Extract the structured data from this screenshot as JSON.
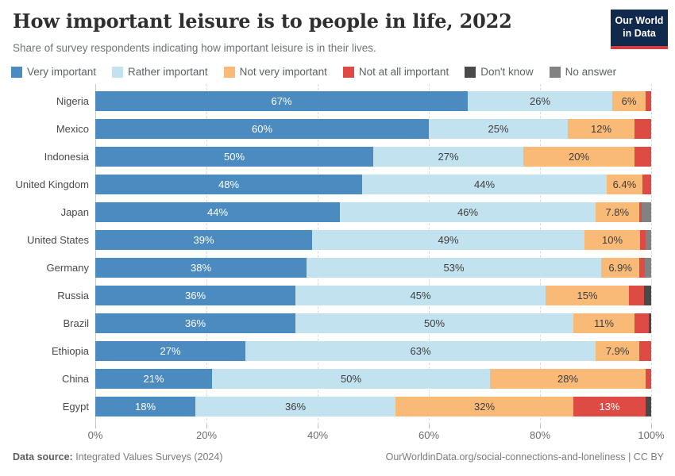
{
  "header": {
    "title": "How important leisure is to people in life, 2022",
    "subtitle": "Share of survey respondents indicating how important leisure is in their lives.",
    "logo": {
      "line1": "Our World",
      "line2": "in Data",
      "bg_color": "#12294E",
      "accent_color": "#D23D42"
    }
  },
  "chart_data": {
    "type": "bar",
    "stacked": true,
    "orientation": "horizontal",
    "unit": "%",
    "xlim": [
      0,
      100
    ],
    "x_ticks": [
      "0%",
      "20%",
      "40%",
      "60%",
      "80%",
      "100%"
    ],
    "grid": "dashed-vertical",
    "legend_position": "top",
    "series_names": [
      "Very important",
      "Rather important",
      "Not very important",
      "Not at all important",
      "Don't know",
      "No answer"
    ],
    "series_colors": [
      "#4C8BC0",
      "#C2E2EF",
      "#F9BA77",
      "#DD4B44",
      "#494949",
      "#828282"
    ],
    "label_text_colors": [
      "#ffffff",
      "#3d3d3d",
      "#3d3d3d",
      "#ffffff",
      "#ffffff",
      "#ffffff"
    ],
    "rows": [
      {
        "country": "Nigeria",
        "values": [
          67,
          26,
          6,
          1,
          0,
          0
        ],
        "labels": [
          "67%",
          "26%",
          "6%",
          "",
          "",
          ""
        ]
      },
      {
        "country": "Mexico",
        "values": [
          60,
          25,
          12,
          3,
          0,
          0
        ],
        "labels": [
          "60%",
          "25%",
          "12%",
          "",
          "",
          ""
        ]
      },
      {
        "country": "Indonesia",
        "values": [
          50,
          27,
          20,
          3,
          0,
          0
        ],
        "labels": [
          "50%",
          "27%",
          "20%",
          "",
          "",
          ""
        ]
      },
      {
        "country": "United Kingdom",
        "values": [
          48,
          44,
          6.4,
          1.6,
          0,
          0
        ],
        "labels": [
          "48%",
          "44%",
          "6.4%",
          "",
          "",
          ""
        ]
      },
      {
        "country": "Japan",
        "values": [
          44,
          46,
          7.8,
          0.5,
          0,
          1.7
        ],
        "labels": [
          "44%",
          "46%",
          "7.8%",
          "",
          "",
          ""
        ]
      },
      {
        "country": "United States",
        "values": [
          39,
          49,
          10,
          1,
          0,
          1
        ],
        "labels": [
          "39%",
          "49%",
          "10%",
          "",
          "",
          ""
        ]
      },
      {
        "country": "Germany",
        "values": [
          38,
          53,
          6.9,
          0.9,
          0,
          1.2
        ],
        "labels": [
          "38%",
          "53%",
          "6.9%",
          "",
          "",
          ""
        ]
      },
      {
        "country": "Russia",
        "values": [
          36,
          45,
          15,
          2.7,
          1.3,
          0
        ],
        "labels": [
          "36%",
          "45%",
          "15%",
          "",
          "",
          ""
        ]
      },
      {
        "country": "Brazil",
        "values": [
          36,
          50,
          11,
          2.5,
          0.5,
          0
        ],
        "labels": [
          "36%",
          "50%",
          "11%",
          "",
          "",
          ""
        ]
      },
      {
        "country": "Ethiopia",
        "values": [
          27,
          63,
          7.9,
          2.1,
          0,
          0
        ],
        "labels": [
          "27%",
          "63%",
          "7.9%",
          "",
          "",
          ""
        ]
      },
      {
        "country": "China",
        "values": [
          21,
          50,
          28,
          1,
          0,
          0
        ],
        "labels": [
          "21%",
          "50%",
          "28%",
          "",
          "",
          ""
        ]
      },
      {
        "country": "Egypt",
        "values": [
          18,
          36,
          32,
          13,
          1,
          0
        ],
        "labels": [
          "18%",
          "36%",
          "32%",
          "13%",
          "",
          ""
        ]
      }
    ]
  },
  "footer": {
    "source_label": "Data source:",
    "source_value": " Integrated Values Surveys (2024)",
    "right": "OurWorldinData.org/social-connections-and-loneliness | CC BY"
  }
}
